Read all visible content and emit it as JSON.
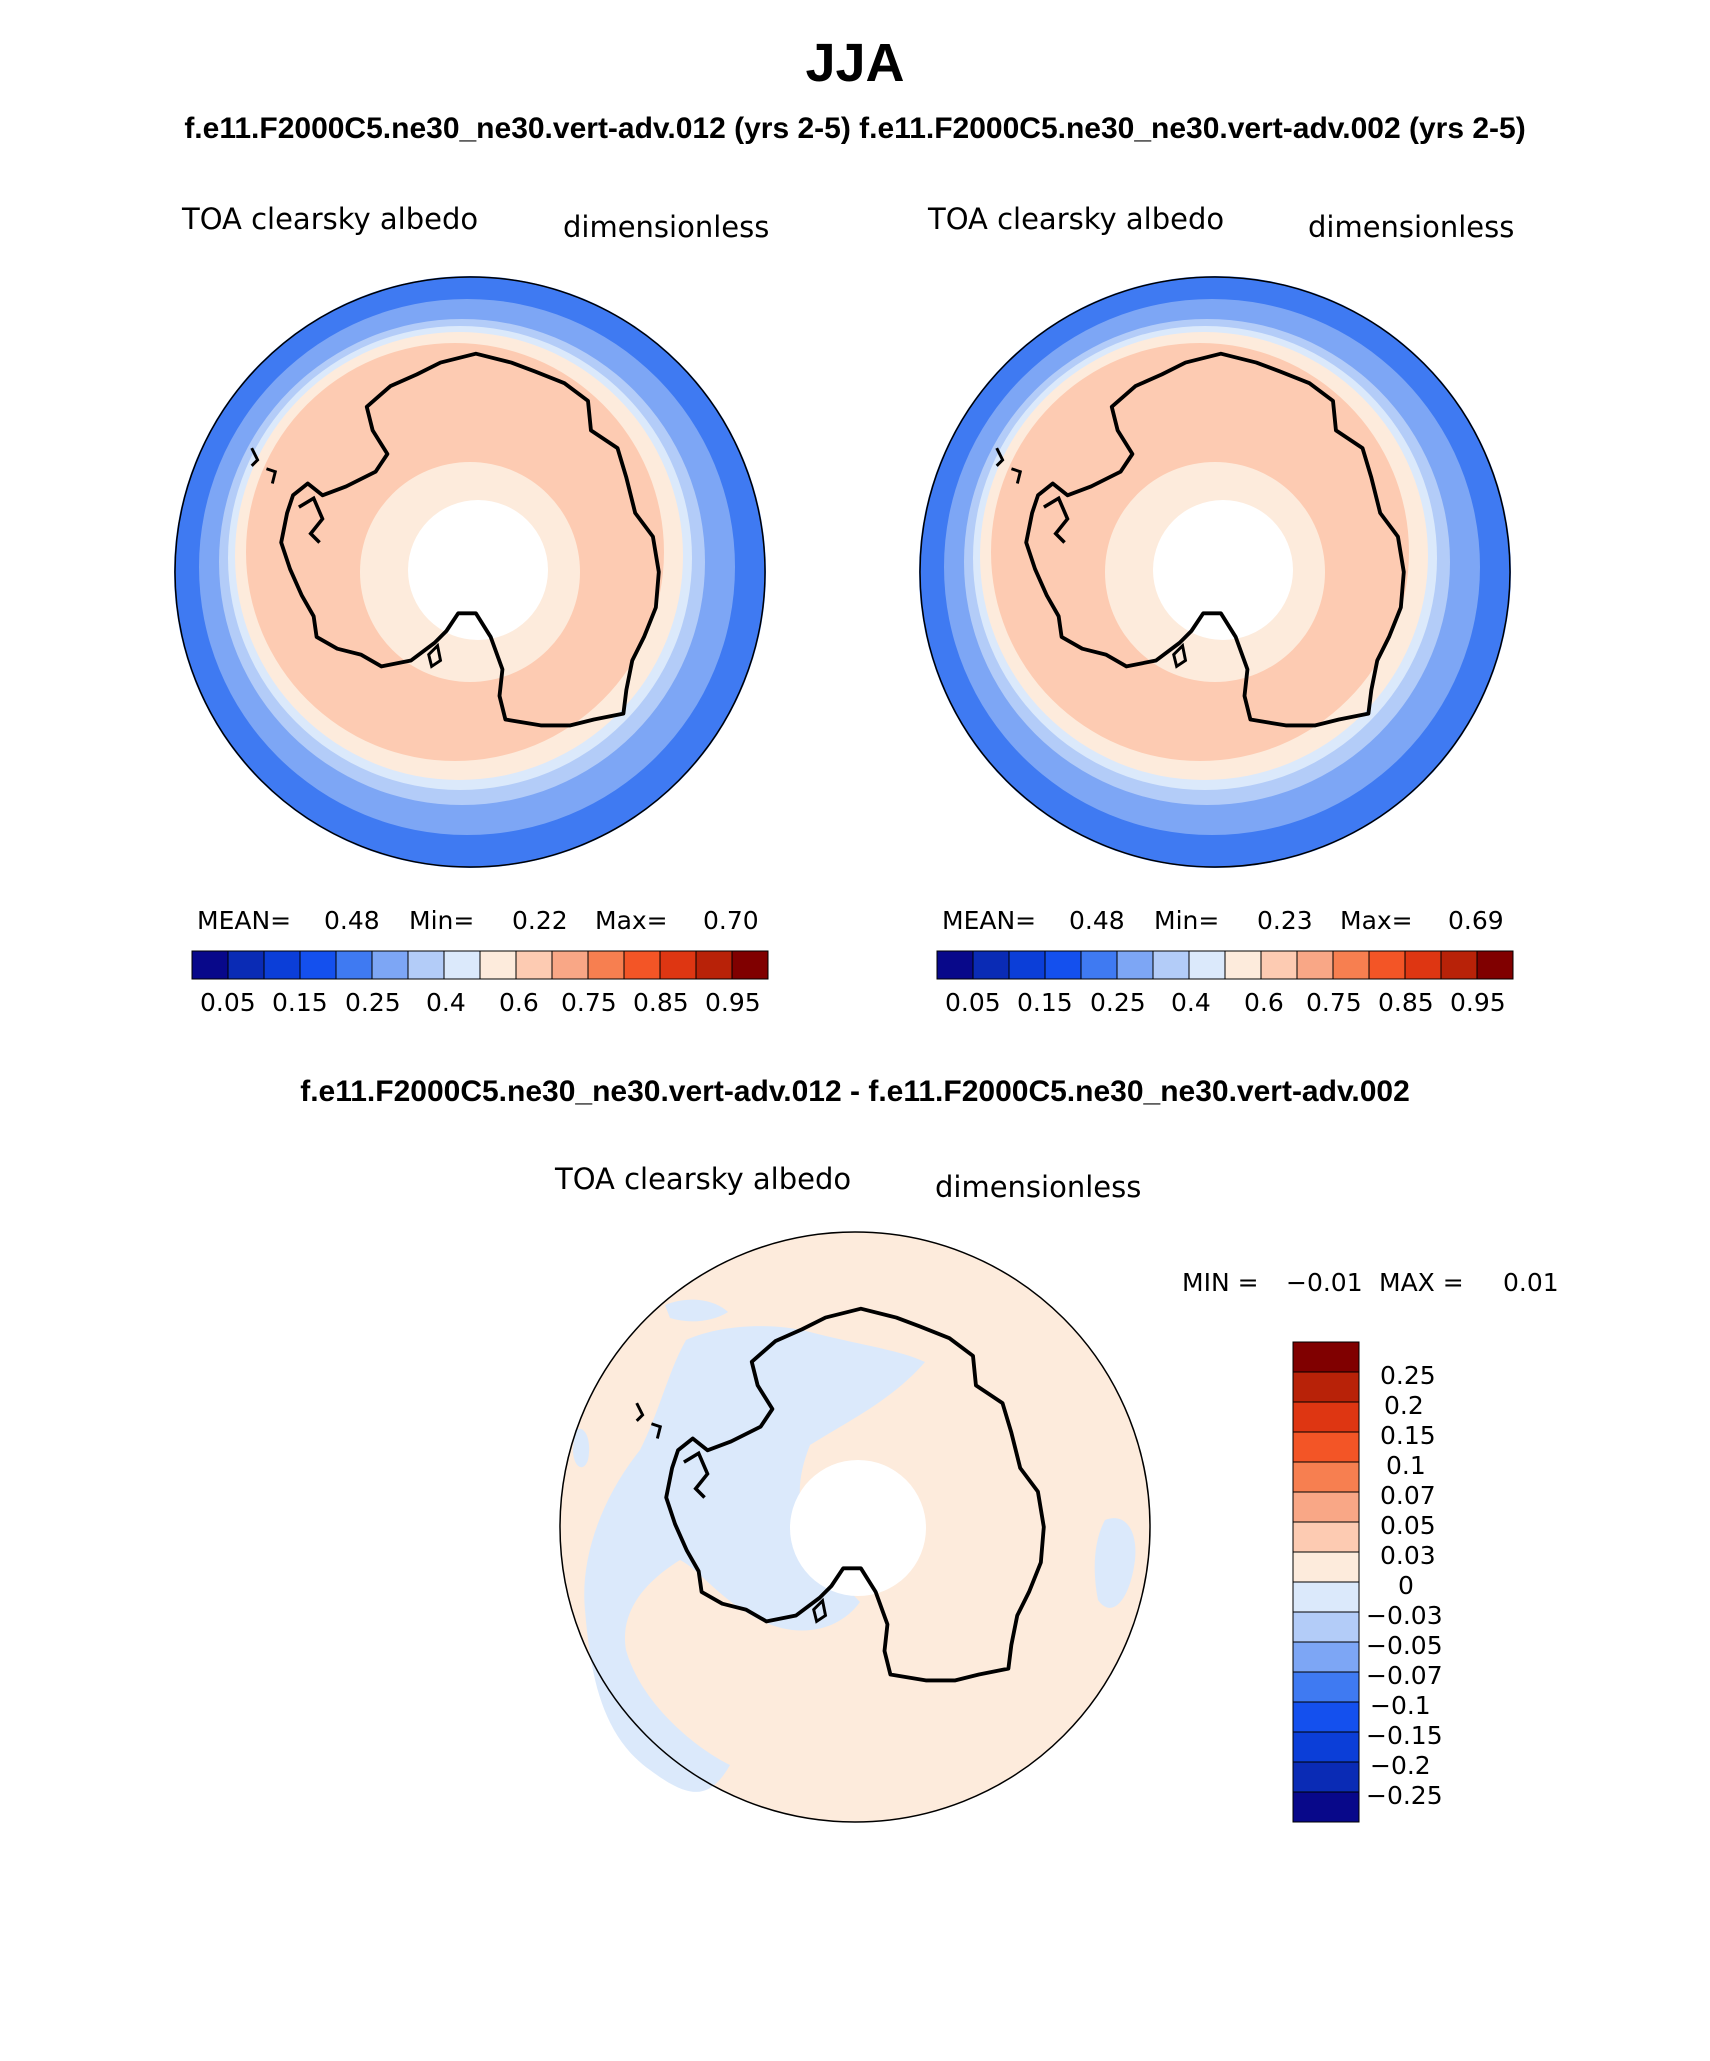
{
  "season": "JJA",
  "header": {
    "cases_title": "f.e11.F2000C5.ne30_ne30.vert-adv.012 (yrs 2-5) f.e11.F2000C5.ne30_ne30.vert-adv.002 (yrs 2-5)",
    "diff_title": "f.e11.F2000C5.ne30_ne30.vert-adv.012 - f.e11.F2000C5.ne30_ne30.vert-adv.002"
  },
  "colors": {
    "abs_scale": [
      "#08088a",
      "#0a2bb5",
      "#0b3ed8",
      "#1450ee",
      "#3f7af2",
      "#7da6f5",
      "#b3ccf8",
      "#dbe9fb",
      "#fdebdc",
      "#fdcbb2",
      "#f9a786",
      "#f77f50",
      "#f35526",
      "#de3612",
      "#b82208",
      "#800000"
    ],
    "diff_scale": [
      "#08088a",
      "#0a2bb5",
      "#0b3ed8",
      "#1450ee",
      "#3f7af2",
      "#7da6f5",
      "#b3ccf8",
      "#dbe9fb",
      "#fdebdc",
      "#fdcbb2",
      "#f9a786",
      "#f77f50",
      "#f35526",
      "#de3612",
      "#b82208",
      "#800000"
    ],
    "coast": "#000000"
  },
  "panels": [
    {
      "variable": "TOA clearsky albedo",
      "units": "dimensionless",
      "stats": {
        "mean_label": "MEAN=",
        "mean": "0.48",
        "min_label": "Min=",
        "min": "0.22",
        "max_label": "Max=",
        "max": "0.70"
      }
    },
    {
      "variable": "TOA clearsky albedo",
      "units": "dimensionless",
      "stats": {
        "mean_label": "MEAN=",
        "mean": "0.48",
        "min_label": "Min=",
        "min": "0.23",
        "max_label": "Max=",
        "max": "0.69"
      }
    }
  ],
  "abs_colorbar": {
    "tick_labels": [
      "0.05",
      "0.15",
      "0.25",
      "0.4",
      "0.6",
      "0.75",
      "0.85",
      "0.95"
    ]
  },
  "diff_panel": {
    "variable": "TOA clearsky albedo",
    "units": "dimensionless",
    "min_label": "MIN =",
    "min": "−0.01",
    "max_label": "MAX =",
    "max": "0.01",
    "colorbar_labels": [
      "0.25",
      "0.2",
      "0.15",
      "0.1",
      "0.07",
      "0.05",
      "0.03",
      "0",
      "−0.03",
      "−0.05",
      "−0.07",
      "−0.1",
      "−0.15",
      "−0.2",
      "−0.25"
    ]
  }
}
